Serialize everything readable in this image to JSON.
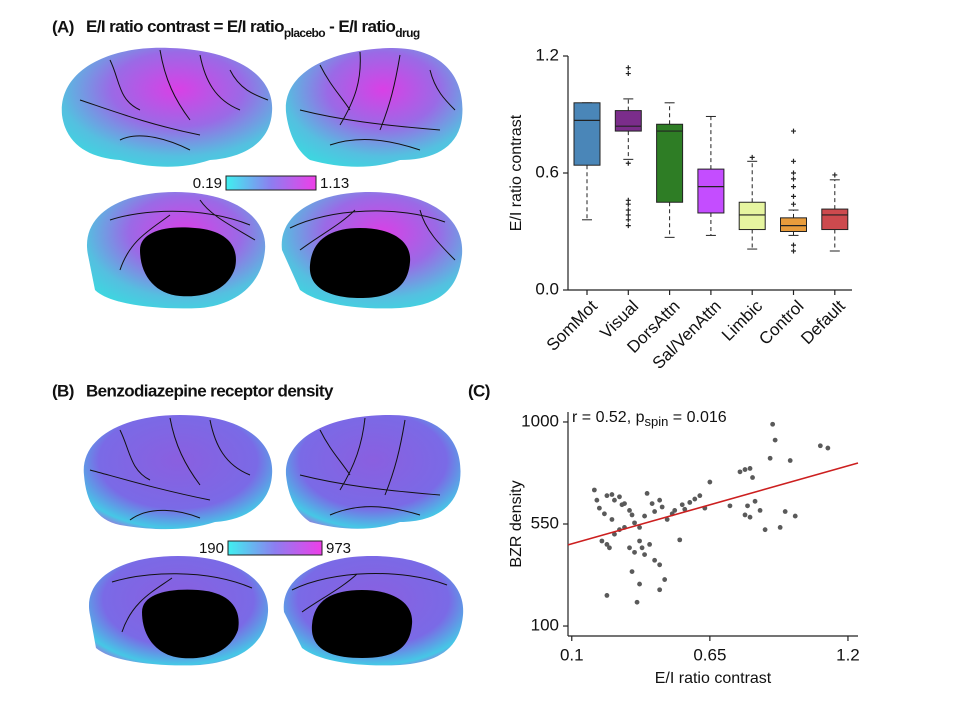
{
  "panels": [
    {
      "label": "(A)",
      "title": [
        "E/I ratio contrast = E/I ratio",
        "placebo",
        " - E/I ratio",
        "drug"
      ]
    },
    {
      "label": "(B)",
      "title": [
        "Benzodiazepine receptor density"
      ]
    },
    {
      "label": "(C)"
    }
  ],
  "colorbars": [
    {
      "min": 0.19,
      "max": 1.13
    },
    {
      "min": 190,
      "max": 973
    }
  ],
  "chart_data": [
    {
      "type": "box",
      "ylabel": "E/I ratio contrast",
      "categories": [
        "SomMot",
        "Visual",
        "DorsAttn",
        "Sal/VenAttn",
        "Limbic",
        "Control",
        "Default"
      ],
      "colors": [
        "#4a86b8",
        "#7b2d8b",
        "#2e7d25",
        "#c44dff",
        "#e6f5a0",
        "#e89c3c",
        "#cd4a4e"
      ],
      "boxes": [
        {
          "min": 0.36,
          "q1": 0.64,
          "median": 0.87,
          "q3": 0.96,
          "max": 0.96,
          "outliers": []
        },
        {
          "min": 0.67,
          "q1": 0.815,
          "median": 0.84,
          "q3": 0.92,
          "max": 0.98,
          "outliers": [
            1.14,
            1.11,
            0.65,
            0.46,
            0.44,
            0.41,
            0.385,
            0.36,
            0.33
          ]
        },
        {
          "min": 0.27,
          "q1": 0.45,
          "median": 0.815,
          "q3": 0.85,
          "max": 0.96,
          "outliers": []
        },
        {
          "min": 0.28,
          "q1": 0.395,
          "median": 0.53,
          "q3": 0.62,
          "max": 0.89,
          "outliers": []
        },
        {
          "min": 0.21,
          "q1": 0.31,
          "median": 0.385,
          "q3": 0.45,
          "max": 0.66,
          "outliers": [
            0.68
          ]
        },
        {
          "min": 0.28,
          "q1": 0.3,
          "median": 0.33,
          "q3": 0.37,
          "max": 0.41,
          "outliers": [
            0.815,
            0.66,
            0.6,
            0.57,
            0.53,
            0.48,
            0.44,
            0.23,
            0.2
          ]
        },
        {
          "min": 0.2,
          "q1": 0.31,
          "median": 0.385,
          "q3": 0.415,
          "max": 0.565,
          "outliers": [
            0.59
          ]
        }
      ],
      "ylim": [
        0,
        1.2
      ],
      "yticks": [
        {
          "value": 0,
          "label": "0.0"
        },
        0.6,
        1.2
      ]
    },
    {
      "type": "scatter",
      "xlabel": "E/I ratio contrast",
      "ylabel": "BZR density",
      "annotation": [
        "r = 0.52, p",
        "spin",
        " = 0.016"
      ],
      "color": "#5a5a5a",
      "x": [
        0.19,
        0.2,
        0.21,
        0.23,
        0.24,
        0.26,
        0.27,
        0.29,
        0.3,
        0.31,
        0.33,
        0.34,
        0.35,
        0.37,
        0.39,
        0.4,
        0.42,
        0.43,
        0.45,
        0.46,
        0.48,
        0.5,
        0.51,
        0.54,
        0.55,
        0.57,
        0.59,
        0.61,
        0.63,
        0.65,
        0.22,
        0.24,
        0.25,
        0.27,
        0.29,
        0.31,
        0.33,
        0.35,
        0.37,
        0.38,
        0.39,
        0.41,
        0.43,
        0.45,
        0.47,
        0.34,
        0.37,
        0.36,
        0.45,
        0.24,
        0.53,
        0.79,
        0.81,
        0.82,
        0.77,
        0.89,
        0.91,
        0.9,
        0.97,
        1.09,
        1.12,
        0.85,
        0.87,
        0.93,
        0.95,
        0.99,
        0.8,
        0.81,
        0.83,
        0.79,
        0.73,
        0.26
      ],
      "y": [
        700,
        655,
        620,
        595,
        675,
        680,
        655,
        670,
        635,
        640,
        610,
        590,
        555,
        535,
        585,
        685,
        640,
        605,
        655,
        625,
        570,
        595,
        610,
        635,
        615,
        645,
        660,
        675,
        620,
        735,
        475,
        460,
        445,
        505,
        525,
        535,
        445,
        425,
        475,
        445,
        415,
        460,
        390,
        370,
        305,
        340,
        285,
        205,
        260,
        235,
        480,
        790,
        795,
        755,
        780,
        840,
        920,
        990,
        830,
        895,
        885,
        610,
        525,
        535,
        605,
        585,
        630,
        580,
        650,
        590,
        630,
        570
      ],
      "trend_line": {
        "color": "#cc1f1f",
        "x": [
          0.085,
          1.24
        ],
        "y": [
          458,
          819
        ]
      },
      "xlim": [
        0.085,
        1.24
      ],
      "ylim": [
        56,
        1044
      ],
      "xticks": [
        0.1,
        0.65,
        1.2
      ],
      "yticks": [
        100,
        550,
        1000
      ]
    }
  ]
}
